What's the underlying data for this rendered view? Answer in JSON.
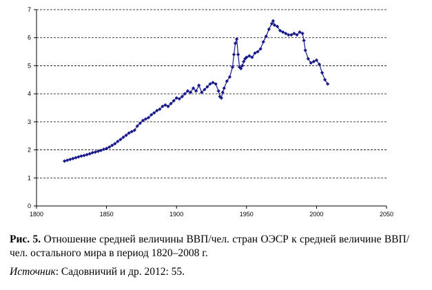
{
  "chart_data": {
    "type": "line",
    "title": "",
    "xlabel": "",
    "ylabel": "",
    "xlim": [
      1800,
      2050
    ],
    "ylim": [
      0,
      7
    ],
    "x_ticks": [
      1800,
      1850,
      1900,
      1950,
      2000,
      2050
    ],
    "y_ticks": [
      0,
      1,
      2,
      3,
      4,
      5,
      6,
      7
    ],
    "grid": "horizontal dashed",
    "legend": "none",
    "series": [
      {
        "color": "#1a1a8c",
        "marker": "diamond",
        "x": [
          1820,
          1822,
          1824,
          1826,
          1828,
          1830,
          1832,
          1834,
          1836,
          1838,
          1840,
          1842,
          1844,
          1846,
          1848,
          1850,
          1852,
          1854,
          1856,
          1858,
          1860,
          1862,
          1864,
          1866,
          1868,
          1870,
          1872,
          1874,
          1876,
          1878,
          1880,
          1882,
          1884,
          1886,
          1888,
          1890,
          1892,
          1894,
          1896,
          1898,
          1900,
          1902,
          1904,
          1906,
          1908,
          1910,
          1912,
          1914,
          1916,
          1918,
          1920,
          1922,
          1924,
          1926,
          1928,
          1930,
          1931,
          1932,
          1933,
          1934,
          1936,
          1938,
          1940,
          1941,
          1942,
          1943,
          1944,
          1945,
          1946,
          1947,
          1948,
          1949,
          1950,
          1952,
          1954,
          1956,
          1958,
          1960,
          1962,
          1964,
          1966,
          1968,
          1969,
          1970,
          1972,
          1974,
          1976,
          1978,
          1980,
          1982,
          1984,
          1986,
          1988,
          1990,
          1991,
          1992,
          1994,
          1996,
          1998,
          2000,
          2002,
          2004,
          2006,
          2008
        ],
        "y": [
          1.6,
          1.63,
          1.66,
          1.69,
          1.72,
          1.75,
          1.78,
          1.8,
          1.83,
          1.86,
          1.9,
          1.92,
          1.95,
          1.98,
          2.02,
          2.05,
          2.1,
          2.16,
          2.22,
          2.3,
          2.37,
          2.45,
          2.52,
          2.6,
          2.65,
          2.7,
          2.85,
          2.95,
          3.05,
          3.1,
          3.15,
          3.25,
          3.32,
          3.4,
          3.45,
          3.55,
          3.6,
          3.55,
          3.65,
          3.75,
          3.85,
          3.82,
          3.9,
          4.0,
          4.1,
          4.05,
          4.2,
          4.1,
          4.3,
          4.05,
          4.15,
          4.25,
          4.35,
          4.4,
          4.35,
          4.1,
          3.9,
          3.85,
          4.05,
          4.2,
          4.45,
          4.6,
          4.95,
          5.4,
          5.8,
          5.95,
          5.4,
          4.95,
          4.9,
          5.0,
          5.15,
          5.25,
          5.3,
          5.35,
          5.3,
          5.45,
          5.5,
          5.6,
          5.85,
          6.05,
          6.3,
          6.5,
          6.6,
          6.45,
          6.4,
          6.25,
          6.2,
          6.15,
          6.1,
          6.1,
          6.15,
          6.1,
          6.2,
          6.15,
          5.9,
          5.55,
          5.25,
          5.1,
          5.15,
          5.2,
          5.05,
          4.75,
          4.5,
          4.35
        ]
      }
    ]
  },
  "caption": {
    "label": "Рис. 5.",
    "text": " Отношение средней величины ВВП/чел. стран ОЭСР к средней величине ВВП/чел. остального мира в период 1820–2008 г.",
    "source_label": "Источник",
    "source_text": ": Садовничий и др. 2012: 55."
  }
}
